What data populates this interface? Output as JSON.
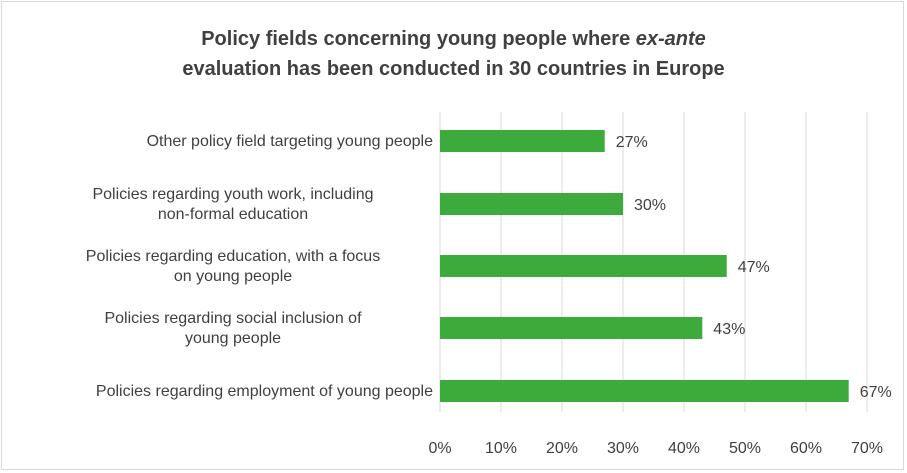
{
  "chart_data": {
    "type": "bar",
    "orientation": "horizontal",
    "title": {
      "line1_prefix": "Policy fields concerning young people where ",
      "line1_emphasis": "ex-ante",
      "line2": "evaluation has been conducted in 30 countries in Europe"
    },
    "categories": [
      [
        "Other policy field targeting young people"
      ],
      [
        "Policies regarding youth work, including",
        "non-formal education"
      ],
      [
        "Policies regarding education, with a focus",
        "on young people"
      ],
      [
        "Policies regarding social inclusion of",
        "young people"
      ],
      [
        "Policies regarding employment of young people"
      ]
    ],
    "values": [
      27,
      30,
      47,
      43,
      67
    ],
    "data_labels": [
      "27%",
      "30%",
      "47%",
      "43%",
      "67%"
    ],
    "x_ticks": [
      "0%",
      "10%",
      "20%",
      "30%",
      "40%",
      "50%",
      "60%",
      "70%"
    ],
    "xlim": [
      0,
      70
    ],
    "bar_color": "#3cab3c",
    "gridline_color": "#d9d9d9",
    "grid": "vertical",
    "legend": "none"
  }
}
